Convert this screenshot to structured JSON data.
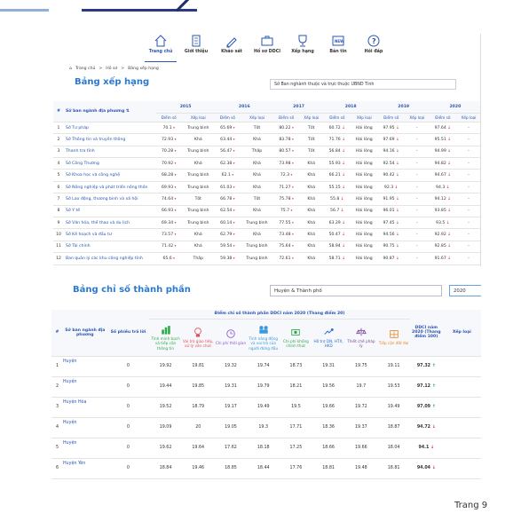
{
  "nav": {
    "items": [
      {
        "label": "Trang chủ",
        "icon": "home-icon"
      },
      {
        "label": "Giới thiệu",
        "icon": "document-icon"
      },
      {
        "label": "Khảo sát",
        "icon": "pen-icon"
      },
      {
        "label": "Hồ sơ DDCI",
        "icon": "briefcase-icon"
      },
      {
        "label": "Xếp hạng",
        "icon": "trophy-icon"
      },
      {
        "label": "Bản tin",
        "icon": "news-icon"
      },
      {
        "label": "Hỏi đáp",
        "icon": "question-icon"
      }
    ]
  },
  "breadcrumb": {
    "home": "Trang chủ",
    "sep": ">",
    "hoso": "Hồ sơ",
    "current": "Bảng xếp hạng"
  },
  "ranking": {
    "title": "Bảng xếp hạng",
    "selected_group": "Sở Ban nghành thuộc và trực thuộc UBND Tỉnh",
    "col_no": "#",
    "col_name": "Sở ban ngành địa phương",
    "years": [
      "2015",
      "2016",
      "2017",
      "2018",
      "2019",
      "2020"
    ],
    "sub_score": "Điểm số",
    "sub_rank": "Xếp loại",
    "rows": [
      {
        "no": "1",
        "name": "Sở Tư pháp",
        "v": [
          "70.1",
          "Trung bình",
          "65.69",
          "Tốt",
          "80.22",
          "Tốt",
          "60.72",
          "Hài lòng",
          "97.95",
          "-",
          "97.64",
          "-"
        ]
      },
      {
        "no": "2",
        "name": "Sở Thông tin và truyền thông",
        "v": [
          "72.93",
          "Khá",
          "63.44",
          "Khá",
          "83.78",
          "Tốt",
          "71.76",
          "Hài lòng",
          "97.69",
          "-",
          "95.51",
          "-"
        ]
      },
      {
        "no": "3",
        "name": "Thanh tra tỉnh",
        "v": [
          "70.28",
          "Trung bình",
          "56.47",
          "Thấp",
          "80.57",
          "Tốt",
          "56.84",
          "Hài lòng",
          "94.16",
          "-",
          "94.99",
          "-"
        ]
      },
      {
        "no": "4",
        "name": "Sở Công Thương",
        "v": [
          "70.92",
          "Khá",
          "62.38",
          "Khá",
          "73.98",
          "Khá",
          "55.93",
          "Hài lòng",
          "92.54",
          "-",
          "94.82",
          "-"
        ]
      },
      {
        "no": "5",
        "name": "Sở Khoa học và công nghệ",
        "v": [
          "68.28",
          "Trung bình",
          "62.1",
          "Khá",
          "72.3",
          "Khá",
          "66.21",
          "Hài lòng",
          "90.42",
          "-",
          "94.67",
          "-"
        ]
      },
      {
        "no": "6",
        "name": "Sở Nông nghiệp và phát triển nông thôn",
        "v": [
          "69.93",
          "Trung bình",
          "61.03",
          "Khá",
          "71.27",
          "Khá",
          "55.15",
          "Hài lòng",
          "92.3",
          "-",
          "94.3",
          "-"
        ]
      },
      {
        "no": "7",
        "name": "Sở Lao động, thương binh và xã hội",
        "v": [
          "74.64",
          "Tốt",
          "66.78",
          "Tốt",
          "75.78",
          "Khá",
          "55.8",
          "Hài lòng",
          "91.95",
          "-",
          "94.12",
          "-"
        ]
      },
      {
        "no": "8",
        "name": "Sở Y tế",
        "v": [
          "66.93",
          "Trung bình",
          "62.54",
          "Khá",
          "75.7",
          "Khá",
          "56.7",
          "Hài lòng",
          "96.01",
          "-",
          "93.85",
          "-"
        ]
      },
      {
        "no": "9",
        "name": "Sở Văn hóa, thể thao và du lịch",
        "v": [
          "69.34",
          "Trung bình",
          "60.14",
          "Trung bình",
          "77.55",
          "Khá",
          "63.29",
          "Hài lòng",
          "97.45",
          "-",
          "93.5",
          "-"
        ]
      },
      {
        "no": "10",
        "name": "Sở Kế hoạch và đầu tư",
        "v": [
          "73.57",
          "Khá",
          "62.79",
          "Khá",
          "73.48",
          "Khá",
          "50.47",
          "Hài lòng",
          "94.56",
          "-",
          "92.92",
          "-"
        ]
      },
      {
        "no": "11",
        "name": "Sở Tài chính",
        "v": [
          "71.42",
          "Khá",
          "59.54",
          "Trung bình",
          "75.64",
          "Khá",
          "58.94",
          "Hài lòng",
          "90.75",
          "-",
          "92.85",
          "-"
        ]
      },
      {
        "no": "12",
        "name": "Ban quản lý các khu công nghiệp tỉnh",
        "v": [
          "65.6",
          "Thấp",
          "59.38",
          "Trung bình",
          "72.61",
          "Khá",
          "58.71",
          "Hài lòng",
          "90.87",
          "-",
          "91.67",
          "-"
        ]
      }
    ]
  },
  "components": {
    "title": "Bảng chỉ số thành phần",
    "selected_area": "Huyện & Thành phố",
    "selected_year": "2020",
    "col_no": "#",
    "col_name": "Sở ban ngành địa phương",
    "col_votes": "Số phiếu trả lời",
    "group_header": "Điểm chỉ số thành phần DDCI năm 2020 (Thang điểm 20)",
    "indicators": [
      {
        "label": "Tính minh bạch và tiếp cận thông tin",
        "icon": "chart-icon",
        "color": "#2ea84a"
      },
      {
        "label": "Vai trò giao tiếp, xử lý vấn chức",
        "icon": "idea-icon",
        "color": "#e0505a"
      },
      {
        "label": "Chi phí thời gian",
        "icon": "clock-icon",
        "color": "#8a5ad0"
      },
      {
        "label": "Tính năng động và vai trò của người đứng đầu",
        "icon": "team-icon",
        "color": "#3a9ad9"
      },
      {
        "label": "Chi phí không chính thức",
        "icon": "money-icon",
        "color": "#2ea84a"
      },
      {
        "label": "Hỗ trợ DN, HTX, HKD",
        "icon": "support-icon",
        "color": "#2a6fd0"
      },
      {
        "label": "Thiết chế pháp lý",
        "icon": "law-icon",
        "color": "#7a4a9a"
      },
      {
        "label": "Tiếp cận đất đai",
        "icon": "land-icon",
        "color": "#e08a2a"
      }
    ],
    "col_ddci": "DDCI năm 2020 (Thang điểm 100)",
    "col_rank": "Xếp loại",
    "rows": [
      {
        "no": "1",
        "name": "Huyện",
        "votes": "0",
        "v": [
          "19.92",
          "19.81",
          "19.32",
          "19.74",
          "18.73",
          "19.31",
          "19.75",
          "19.11"
        ],
        "ddci": "97.32",
        "trend": "↑"
      },
      {
        "no": "2",
        "name": "Huyện",
        "votes": "0",
        "v": [
          "19.44",
          "19.85",
          "19.31",
          "19.79",
          "18.21",
          "19.56",
          "19.7",
          "19.53"
        ],
        "ddci": "97.12",
        "trend": "↑"
      },
      {
        "no": "3",
        "name": "Huyện Hòa",
        "votes": "0",
        "v": [
          "19.52",
          "18.79",
          "19.17",
          "19.49",
          "19.5",
          "19.66",
          "19.72",
          "19.49"
        ],
        "ddci": "97.09",
        "trend": "↑"
      },
      {
        "no": "4",
        "name": "Huyện",
        "votes": "0",
        "v": [
          "19.09",
          "20",
          "19.05",
          "19.3",
          "17.71",
          "18.36",
          "19.37",
          "18.87"
        ],
        "ddci": "94.72",
        "trend": "↓"
      },
      {
        "no": "5",
        "name": "Huyện",
        "votes": "0",
        "v": [
          "19.62",
          "19.64",
          "17.62",
          "18.18",
          "17.25",
          "18.66",
          "19.66",
          "18.04"
        ],
        "ddci": "94.1",
        "trend": "↓"
      },
      {
        "no": "6",
        "name": "Huyện Yên",
        "votes": "0",
        "v": [
          "18.84",
          "19.46",
          "18.85",
          "18.44",
          "17.76",
          "18.81",
          "19.48",
          "18.81"
        ],
        "ddci": "94.04",
        "trend": "↓"
      }
    ]
  },
  "page_label": "Trang 9"
}
